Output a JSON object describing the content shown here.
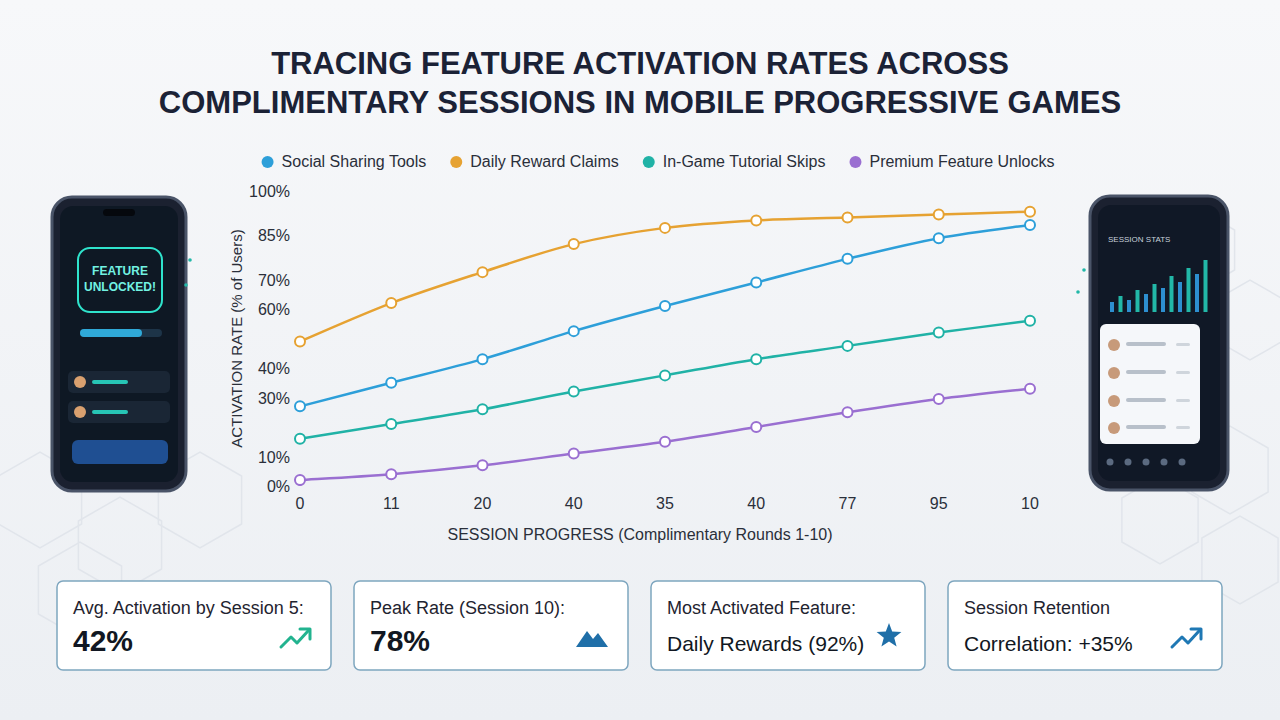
{
  "chart_data": {
    "type": "line",
    "title": "TRACING FEATURE ACTIVATION RATES ACROSS COMPLIMENTARY SESSIONS IN MOBILE PROGRESSIVE GAMES",
    "x_label": "SESSION PROGRESS (Complimentary Rounds 1-10)",
    "y_label": "ACTIVATION RATE (% of Users)",
    "categories": [
      "0",
      "11",
      "20",
      "40",
      "35",
      "40",
      "77",
      "95",
      "10"
    ],
    "series": [
      {
        "name": "Social Sharing Tools",
        "color": "#2d9fd9",
        "values": [
          27,
          35,
          43,
          52.5,
          61,
          69,
          77,
          84,
          88.5
        ]
      },
      {
        "name": "Daily Reward Claims",
        "color": "#e6a232",
        "values": [
          49,
          62,
          72.5,
          82,
          87.5,
          90,
          91,
          92,
          93
        ]
      },
      {
        "name": "In-Game Tutorial Skips",
        "color": "#20b2a6",
        "values": [
          16,
          21,
          26,
          32,
          37.5,
          43,
          47.5,
          52,
          56
        ]
      },
      {
        "name": "Premium Feature Unlocks",
        "color": "#9a6fd1",
        "values": [
          2,
          4,
          7,
          11,
          15,
          20,
          25,
          29.5,
          33
        ]
      }
    ],
    "ylim": [
      0,
      100
    ],
    "yticks": [
      {
        "value": 0,
        "label": "0%"
      },
      {
        "value": 10,
        "label": "10%"
      },
      {
        "value": 30,
        "label": "30%"
      },
      {
        "value": 40,
        "label": "40%"
      },
      {
        "value": 60,
        "label": "60%"
      },
      {
        "value": 70,
        "label": "70%"
      },
      {
        "value": 85,
        "label": "85%"
      },
      {
        "value": 100,
        "label": "100%"
      }
    ],
    "grid": false,
    "legend": "top",
    "marker": "circle",
    "line_style": "solid"
  },
  "cards": [
    {
      "label": "Avg. Activation by Session 5:",
      "value": "42%"
    },
    {
      "label": "Peak Rate (Session 10):",
      "value": "78%"
    },
    {
      "label": "Most Activated Feature:",
      "value": "Daily Rewards (92%)"
    },
    {
      "label": "Session Retention",
      "value": "Correlation: +35%"
    }
  ],
  "phones": {
    "left_screen": "FEATURE UNLOCKED!",
    "right_screen": "SESSION STATS"
  }
}
